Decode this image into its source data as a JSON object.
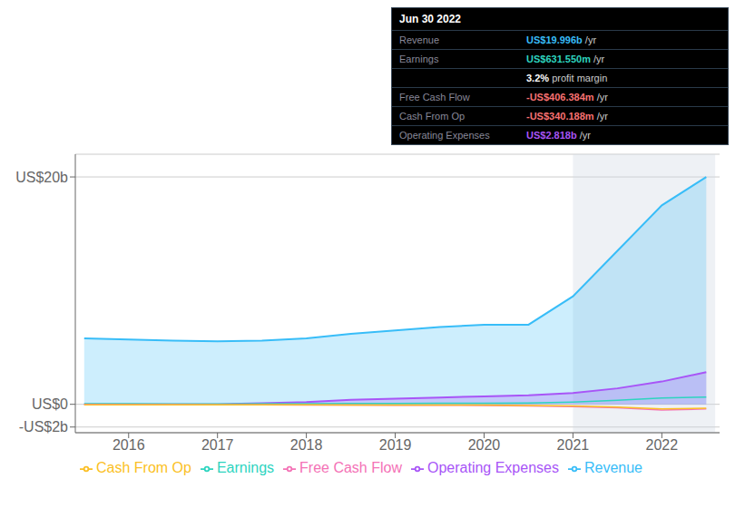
{
  "chart_data": {
    "type": "line",
    "x": [
      2015.5,
      2016.0,
      2016.5,
      2017.0,
      2017.5,
      2018.0,
      2018.5,
      2019.0,
      2019.5,
      2020.0,
      2020.5,
      2021.0,
      2021.5,
      2022.0,
      2022.5
    ],
    "series": [
      {
        "name": "Revenue",
        "type": "area",
        "color": "#38bdf8",
        "values": [
          5.8,
          5.7,
          5.6,
          5.55,
          5.6,
          5.8,
          6.2,
          6.5,
          6.8,
          7.0,
          7.0,
          9.5,
          13.5,
          17.5,
          20.0
        ]
      },
      {
        "name": "Earnings",
        "type": "line",
        "color": "#2dd4bf",
        "values": [
          0.05,
          0.05,
          0.04,
          0.04,
          0.05,
          0.06,
          0.07,
          0.08,
          0.09,
          0.1,
          0.12,
          0.2,
          0.35,
          0.55,
          0.63
        ]
      },
      {
        "name": "Free Cash Flow",
        "type": "line",
        "color": "#f472b6",
        "values": [
          0.0,
          -0.02,
          -0.03,
          -0.04,
          -0.05,
          -0.06,
          -0.07,
          -0.08,
          -0.09,
          -0.1,
          -0.15,
          -0.2,
          -0.3,
          -0.5,
          -0.41
        ]
      },
      {
        "name": "Cash From Op",
        "type": "line",
        "color": "#fbbf24",
        "values": [
          -0.05,
          -0.04,
          -0.04,
          -0.04,
          -0.05,
          -0.05,
          -0.06,
          -0.06,
          -0.07,
          -0.07,
          -0.1,
          -0.15,
          -0.25,
          -0.4,
          -0.34
        ]
      },
      {
        "name": "Operating Expenses",
        "type": "area",
        "color": "#a855f7",
        "values": [
          0.0,
          0.0,
          0.0,
          0.0,
          0.1,
          0.2,
          0.4,
          0.5,
          0.6,
          0.7,
          0.8,
          1.0,
          1.4,
          2.0,
          2.82
        ]
      }
    ],
    "xlim": [
      2015.4,
      2022.65
    ],
    "xticks": [
      2016,
      2017,
      2018,
      2019,
      2020,
      2021,
      2022
    ],
    "ylim": [
      -2.5,
      22.0
    ],
    "yticks": [
      {
        "value": -2,
        "label": "-US$2b"
      },
      {
        "value": 0,
        "label": "US$0"
      },
      {
        "value": 20,
        "label": "US$20b"
      }
    ],
    "grid": true,
    "legend": "bottom",
    "shaded_range": [
      2021.0,
      2022.6
    ],
    "annotation": {
      "title": "Jun 30 2022",
      "rows": [
        {
          "label": "Revenue",
          "value": "US$19.996b",
          "suffix": " /yr",
          "color": "#38bdf8"
        },
        {
          "label": "Earnings",
          "value": "US$631.550m",
          "suffix": " /yr",
          "color": "#2dd4bf"
        },
        {
          "value": "3.2%",
          "suffix": " profit margin",
          "color": "#ffffff"
        },
        {
          "label": "Free Cash Flow",
          "value": "-US$406.384m",
          "suffix": " /yr",
          "color": "#f87171"
        },
        {
          "label": "Cash From Op",
          "value": "-US$340.188m",
          "suffix": " /yr",
          "color": "#f87171"
        },
        {
          "label": "Operating Expenses",
          "value": "US$2.818b",
          "suffix": " /yr",
          "color": "#a855f7"
        }
      ]
    }
  }
}
